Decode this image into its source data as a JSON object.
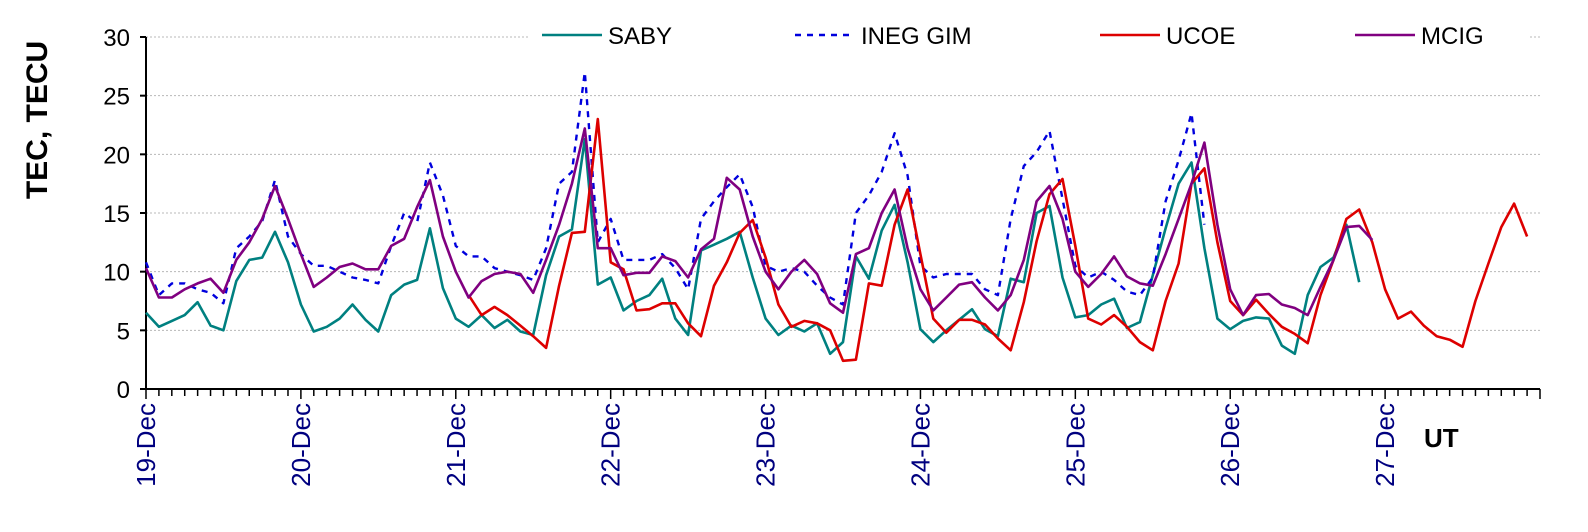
{
  "chart_data": {
    "type": "line",
    "title": "",
    "ylabel": "TEC, TECU",
    "xlabel": "UT",
    "ylim": [
      0,
      30
    ],
    "yticks": [
      "0",
      "5",
      "10",
      "15",
      "20",
      "25",
      "30"
    ],
    "x_unit": "days from 19-Dec 00:00 UT",
    "x_range": [
      0,
      9.0
    ],
    "xticks": [
      {
        "label": "19-Dec",
        "x": 0
      },
      {
        "label": "20-Dec",
        "x": 1
      },
      {
        "label": "21-Dec",
        "x": 2
      },
      {
        "label": "22-Dec",
        "x": 3
      },
      {
        "label": "23-Dec",
        "x": 4
      },
      {
        "label": "24-Dec",
        "x": 5
      },
      {
        "label": "25-Dec",
        "x": 6
      },
      {
        "label": "26-Dec",
        "x": 7
      },
      {
        "label": "27-Dec",
        "x": 8
      }
    ],
    "grid": true,
    "legend_position": "top-right",
    "series": [
      {
        "name": "SABY",
        "color": "#008080",
        "style": "solid",
        "x": [
          0.0,
          0.083,
          0.167,
          0.25,
          0.333,
          0.417,
          0.5,
          0.583,
          0.667,
          0.75,
          0.833,
          0.917,
          1.0,
          1.083,
          1.167,
          1.25,
          1.333,
          1.417,
          1.5,
          1.583,
          1.667,
          1.75,
          1.833,
          1.917,
          2.0,
          2.083,
          2.167,
          2.25,
          2.333,
          2.417,
          2.5,
          2.583,
          2.667,
          2.75,
          2.833,
          2.917,
          3.0,
          3.083,
          3.167,
          3.25,
          3.333,
          3.417,
          3.5,
          3.583,
          3.667,
          3.75,
          3.833,
          3.917,
          4.0,
          4.083,
          4.167,
          4.25,
          4.333,
          4.417,
          4.5,
          4.583,
          4.667,
          4.75,
          4.833,
          4.917,
          5.0,
          5.083,
          5.167,
          5.25,
          5.333,
          5.417,
          5.5,
          5.583,
          5.667,
          5.75,
          5.833,
          5.917,
          6.0,
          6.083,
          6.167,
          6.25,
          6.333,
          6.417,
          6.5,
          6.583,
          6.667,
          6.75,
          6.833,
          6.917,
          7.0,
          7.083,
          7.167,
          7.25,
          7.333,
          7.417,
          7.5,
          7.583,
          7.667,
          7.75,
          7.833,
          7.917
        ],
        "y": [
          6.5,
          5.3,
          5.8,
          6.3,
          7.4,
          5.4,
          5.0,
          9.2,
          11.0,
          11.2,
          13.4,
          10.8,
          7.2,
          4.9,
          5.3,
          6.0,
          7.2,
          5.9,
          4.9,
          8.0,
          8.9,
          9.3,
          13.7,
          8.6,
          6.0,
          5.3,
          6.3,
          5.2,
          5.9,
          4.9,
          4.6,
          9.7,
          13.0,
          13.6,
          21.3,
          8.9,
          9.5,
          6.7,
          7.5,
          8.0,
          9.4,
          6.0,
          4.6,
          11.8,
          12.3,
          12.8,
          13.4,
          9.5,
          6.0,
          4.6,
          5.4,
          4.9,
          5.6,
          3.0,
          4.0,
          11.3,
          9.4,
          13.5,
          15.7,
          10.8,
          5.1,
          4.0,
          5.0,
          5.9,
          6.8,
          5.1,
          4.5,
          9.4,
          9.1,
          15.0,
          15.6,
          9.5,
          6.1,
          6.3,
          7.2,
          7.7,
          5.2,
          5.7,
          9.7,
          13.7,
          17.5,
          19.3,
          12.0,
          6.0,
          5.1,
          5.8,
          6.1,
          6.0,
          3.7,
          3.0,
          8.0,
          10.4,
          11.2,
          14.0,
          9.1,
          null
        ]
      },
      {
        "name": "INEG GIM",
        "color": "#0000dd",
        "style": "dotted",
        "x": [
          0.0,
          0.083,
          0.167,
          0.25,
          0.333,
          0.417,
          0.5,
          0.583,
          0.667,
          0.75,
          0.833,
          0.917,
          1.0,
          1.083,
          1.167,
          1.25,
          1.333,
          1.417,
          1.5,
          1.583,
          1.667,
          1.75,
          1.833,
          1.917,
          2.0,
          2.083,
          2.167,
          2.25,
          2.333,
          2.417,
          2.5,
          2.583,
          2.667,
          2.75,
          2.833,
          2.917,
          3.0,
          3.083,
          3.167,
          3.25,
          3.333,
          3.417,
          3.5,
          3.583,
          3.667,
          3.75,
          3.833,
          3.917,
          4.0,
          4.083,
          4.167,
          4.25,
          4.333,
          4.417,
          4.5,
          4.583,
          4.667,
          4.75,
          4.833,
          4.917,
          5.0,
          5.083,
          5.167,
          5.25,
          5.333,
          5.417,
          5.5,
          5.583,
          5.667,
          5.75,
          5.833,
          5.917,
          6.0,
          6.083,
          6.167,
          6.25,
          6.333,
          6.417,
          6.5,
          6.583,
          6.667,
          6.75,
          6.833,
          6.917,
          7.0
        ],
        "y": [
          10.8,
          8.0,
          9.0,
          9.0,
          8.5,
          8.2,
          7.3,
          12.0,
          13.0,
          14.3,
          17.8,
          13.0,
          11.5,
          10.5,
          10.5,
          10.0,
          9.5,
          9.3,
          9.0,
          12.2,
          15.0,
          14.2,
          19.3,
          16.5,
          12.2,
          11.3,
          11.3,
          10.3,
          10.0,
          9.7,
          9.3,
          12.0,
          17.5,
          18.5,
          27.0,
          12.5,
          14.5,
          11.0,
          11.0,
          11.0,
          11.5,
          10.3,
          8.5,
          14.5,
          16.0,
          17.2,
          18.3,
          15.5,
          10.5,
          10.0,
          10.3,
          10.0,
          8.8,
          7.8,
          7.2,
          15.0,
          16.5,
          18.5,
          21.8,
          18.2,
          10.5,
          9.5,
          9.8,
          9.8,
          9.8,
          8.5,
          8.0,
          14.5,
          19.0,
          20.2,
          22.0,
          16.2,
          10.5,
          9.5,
          10.0,
          9.3,
          8.3,
          8.0,
          9.5,
          16.0,
          19.5,
          23.5,
          14.0,
          null,
          null
        ]
      },
      {
        "name": "UCOE",
        "color": "#dd0000",
        "style": "solid",
        "x": [
          2.083,
          2.167,
          2.25,
          2.333,
          2.417,
          2.5,
          2.583,
          2.667,
          2.75,
          2.833,
          2.917,
          3.0,
          3.083,
          3.167,
          3.25,
          3.333,
          3.417,
          3.5,
          3.583,
          3.667,
          3.75,
          3.833,
          3.917,
          4.0,
          4.083,
          4.167,
          4.25,
          4.333,
          4.417,
          4.5,
          4.583,
          4.667,
          4.75,
          4.833,
          4.917,
          5.0,
          5.083,
          5.167,
          5.25,
          5.333,
          5.417,
          5.5,
          5.583,
          5.667,
          5.75,
          5.833,
          5.917,
          6.0,
          6.083,
          6.167,
          6.25,
          6.333,
          6.417,
          6.5,
          6.583,
          6.667,
          6.75,
          6.833,
          6.917,
          7.0,
          7.083,
          7.167,
          7.25,
          7.333,
          7.417,
          7.5,
          7.583,
          7.667,
          7.75,
          7.833,
          7.917,
          8.0,
          8.083,
          8.167,
          8.25,
          8.333,
          8.417,
          8.5,
          8.583,
          8.667,
          8.75,
          8.833,
          8.917
        ],
        "y": [
          8.0,
          6.3,
          7.0,
          6.3,
          5.4,
          4.5,
          3.5,
          8.8,
          13.3,
          13.4,
          23.0,
          10.8,
          10.2,
          6.7,
          6.8,
          7.3,
          7.3,
          5.6,
          4.5,
          8.8,
          10.8,
          13.3,
          14.4,
          11.2,
          7.2,
          5.3,
          5.8,
          5.6,
          5.0,
          2.4,
          2.5,
          9.0,
          8.8,
          14.0,
          17.0,
          11.5,
          6.0,
          4.8,
          5.9,
          5.9,
          5.5,
          4.3,
          3.3,
          7.4,
          12.6,
          16.6,
          17.9,
          12.2,
          6.0,
          5.5,
          6.3,
          5.3,
          4.0,
          3.3,
          7.5,
          10.7,
          17.5,
          18.8,
          12.5,
          7.5,
          6.3,
          7.6,
          6.4,
          5.3,
          4.7,
          3.9,
          8.0,
          11.0,
          14.5,
          15.3,
          12.5,
          8.5,
          6.0,
          6.6,
          5.4,
          4.5,
          4.2,
          3.6,
          7.5,
          10.7,
          13.8,
          15.8,
          13.0
        ]
      },
      {
        "name": "MCIG",
        "color": "#800080",
        "style": "solid",
        "x": [
          0.0,
          0.083,
          0.167,
          0.25,
          0.333,
          0.417,
          0.5,
          0.583,
          0.667,
          0.75,
          0.833,
          0.917,
          1.0,
          1.083,
          1.167,
          1.25,
          1.333,
          1.417,
          1.5,
          1.583,
          1.667,
          1.75,
          1.833,
          1.917,
          2.0,
          2.083,
          2.167,
          2.25,
          2.333,
          2.417,
          2.5,
          2.583,
          2.667,
          2.75,
          2.833,
          2.917,
          3.0,
          3.083,
          3.167,
          3.25,
          3.333,
          3.417,
          3.5,
          3.583,
          3.667,
          3.75,
          3.833,
          3.917,
          4.0,
          4.083,
          4.167,
          4.25,
          4.333,
          4.417,
          4.5,
          4.583,
          4.667,
          4.75,
          4.833,
          4.917,
          5.0,
          5.083,
          5.167,
          5.25,
          5.333,
          5.417,
          5.5,
          5.583,
          5.667,
          5.75,
          5.833,
          5.917,
          6.0,
          6.083,
          6.167,
          6.25,
          6.333,
          6.417,
          6.5,
          6.583,
          6.667,
          6.75,
          6.833,
          6.917,
          7.0,
          7.083,
          7.167,
          7.25,
          7.333,
          7.417,
          7.5,
          7.583,
          7.667,
          7.75,
          7.833,
          7.917
        ],
        "y": [
          10.3,
          7.8,
          7.8,
          8.5,
          9.0,
          9.4,
          8.2,
          11.0,
          12.5,
          14.5,
          17.3,
          14.5,
          11.5,
          8.7,
          9.5,
          10.4,
          10.7,
          10.2,
          10.2,
          12.2,
          12.8,
          15.5,
          17.8,
          13.0,
          10.0,
          7.8,
          9.2,
          9.8,
          10.0,
          9.8,
          8.2,
          11.0,
          14.0,
          17.5,
          22.2,
          12.0,
          12.0,
          9.7,
          9.9,
          9.9,
          11.3,
          10.9,
          9.5,
          11.9,
          12.8,
          18.0,
          17.0,
          13.0,
          10.0,
          8.5,
          10.0,
          11.0,
          9.8,
          7.3,
          6.5,
          11.5,
          12.0,
          15.0,
          17.0,
          12.0,
          8.5,
          6.7,
          7.8,
          8.9,
          9.1,
          7.8,
          6.7,
          8.0,
          11.0,
          16.0,
          17.3,
          14.5,
          10.0,
          8.7,
          9.8,
          11.3,
          9.6,
          9.0,
          8.8,
          11.5,
          14.5,
          17.5,
          21.0,
          14.0,
          8.5,
          6.3,
          8.0,
          8.1,
          7.2,
          6.9,
          6.3,
          8.7,
          11.0,
          13.8,
          13.9,
          12.7
        ]
      }
    ]
  }
}
